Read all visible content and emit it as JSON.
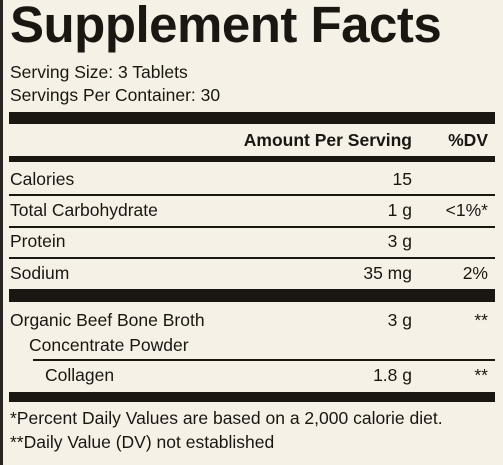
{
  "title": "Supplement Facts",
  "serving": [
    "Serving Size: 3 Tablets",
    "Servings Per Container: 30"
  ],
  "header": {
    "amount": "Amount Per Serving",
    "dv": "%DV"
  },
  "rows": [
    {
      "name": "Calories",
      "amount": "15"
    },
    {
      "name": "Total Carbohydrate",
      "amount": "1 g",
      "dv": "<1%*"
    },
    {
      "name": "Protein",
      "amount": "3 g"
    },
    {
      "name": "Sodium",
      "amount": "35 mg",
      "dv": "2%"
    }
  ],
  "ingredients": [
    {
      "name": [
        "Organic Beef Bone Broth",
        "Concentrate Powder"
      ],
      "amount": "3 g",
      "dv": "**"
    },
    {
      "name": [
        "Collagen"
      ],
      "amount": "1.8 g",
      "dv": "**"
    }
  ],
  "footnotes": [
    "*Percent Daily Values are based on a 2,000 calorie diet.",
    "**Daily Value (DV) not established"
  ]
}
